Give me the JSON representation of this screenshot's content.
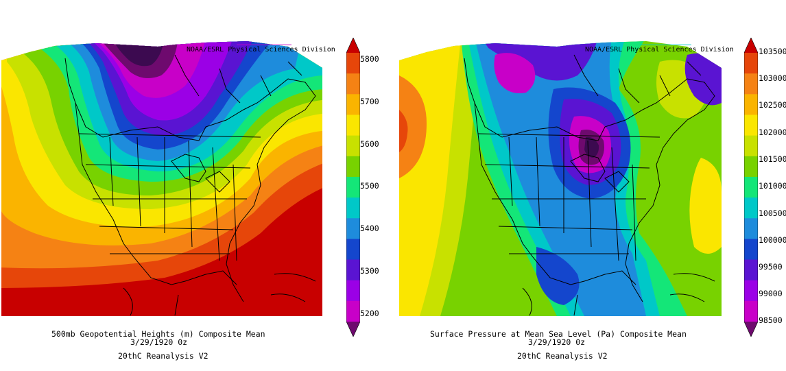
{
  "panels": [
    {
      "credit": "NOAA/ESRL Physical Sciences Division",
      "title_line1": "500mb Geopotential Heights (m)    Composite Mean",
      "title_line2": "3/29/1920 0z",
      "title_line3": "20thC Reanalysis V2",
      "colorbar_labels": [
        "5800",
        "5700",
        "5600",
        "5500",
        "5400",
        "5300",
        "5200"
      ],
      "colorbar_colors": [
        "#c80000",
        "#e6460a",
        "#f58214",
        "#fab400",
        "#fae600",
        "#c8e100",
        "#78d200",
        "#14e678",
        "#00c8c8",
        "#1e8cdc",
        "#1446cd",
        "#5a14d2",
        "#9b00e6",
        "#c800c8",
        "#6e0a6e"
      ],
      "field_levels": [
        "#3c0a50",
        "#6e0a6e",
        "#c800c8",
        "#9b00e6",
        "#5a14d2",
        "#1446cd",
        "#1e8cdc",
        "#00c8c8",
        "#14e678",
        "#78d200",
        "#c8e100",
        "#fae600",
        "#fab400",
        "#f58214",
        "#e6460a",
        "#c80000"
      ]
    },
    {
      "credit": "NOAA/ESRL Physical Sciences Division",
      "title_line1": "Surface Pressure at Mean Sea Level (Pa)    Composite Mean",
      "title_line2": "3/29/1920 0z",
      "title_line3": "20thC Reanalysis V2",
      "colorbar_labels": [
        "103500",
        "103000",
        "102500",
        "102000",
        "101500",
        "101000",
        "100500",
        "100000",
        "99500",
        "99000",
        "98500"
      ],
      "colorbar_colors": [
        "#c80000",
        "#e6460a",
        "#f58214",
        "#fab400",
        "#fae600",
        "#c8e100",
        "#78d200",
        "#14e678",
        "#00c8c8",
        "#1e8cdc",
        "#1446cd",
        "#5a14d2",
        "#9b00e6",
        "#c800c8",
        "#6e0a6e"
      ]
    }
  ]
}
